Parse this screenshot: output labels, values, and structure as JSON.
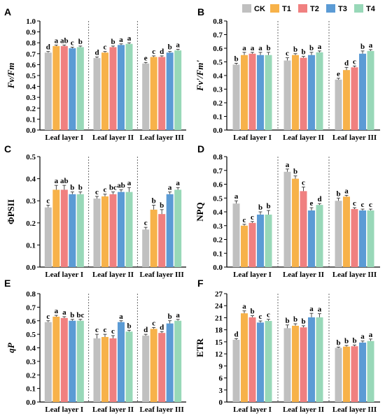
{
  "legend": {
    "items": [
      {
        "name": "CK",
        "color": "#c0c0c0"
      },
      {
        "name": "T1",
        "color": "#f7b24a"
      },
      {
        "name": "T2",
        "color": "#f08080"
      },
      {
        "name": "T3",
        "color": "#5b9bd5"
      },
      {
        "name": "T4",
        "color": "#98d8b8"
      }
    ]
  },
  "chart_data": [
    {
      "panel": "A",
      "type": "bar",
      "ylabel": "Fv/Fm",
      "ylabel_style": "italic",
      "ylim": [
        0,
        1.0
      ],
      "yticks": [
        "0.0",
        "0.1",
        "0.2",
        "0.3",
        "0.4",
        "0.5",
        "0.6",
        "0.7",
        "0.8",
        "0.9",
        "1.0"
      ],
      "categories": [
        "Leaf layer I",
        "Leaf layer II",
        "Leaf layer III"
      ],
      "series": [
        {
          "name": "CK",
          "values": [
            0.71,
            0.66,
            0.61
          ],
          "errors": [
            0.01,
            0.01,
            0.01
          ],
          "labels": [
            "d",
            "d",
            "e"
          ]
        },
        {
          "name": "T1",
          "values": [
            0.77,
            0.71,
            0.67
          ],
          "errors": [
            0.01,
            0.01,
            0.01
          ],
          "labels": [
            "a",
            "c",
            "c"
          ]
        },
        {
          "name": "T2",
          "values": [
            0.77,
            0.76,
            0.67
          ],
          "errors": [
            0.01,
            0.01,
            0.01
          ],
          "labels": [
            "ab",
            "b",
            "d"
          ]
        },
        {
          "name": "T3",
          "values": [
            0.75,
            0.78,
            0.71
          ],
          "errors": [
            0.01,
            0.01,
            0.01
          ],
          "labels": [
            "c",
            "a",
            "b"
          ]
        },
        {
          "name": "T4",
          "values": [
            0.76,
            0.79,
            0.73
          ],
          "errors": [
            0.01,
            0.01,
            0.01
          ],
          "labels": [
            "b",
            "a",
            "a"
          ]
        }
      ]
    },
    {
      "panel": "B",
      "type": "bar",
      "ylabel": "Fv'/Fm'",
      "ylabel_style": "italic",
      "ylim": [
        0,
        0.8
      ],
      "yticks": [
        "0.0",
        "0.1",
        "0.2",
        "0.3",
        "0.4",
        "0.5",
        "0.6",
        "0.7",
        "0.8"
      ],
      "categories": [
        "Leaf layer I",
        "Leaf layer II",
        "Leaf layer III"
      ],
      "series": [
        {
          "name": "CK",
          "values": [
            0.48,
            0.51,
            0.37
          ],
          "errors": [
            0.01,
            0.02,
            0.01
          ],
          "labels": [
            "b",
            "c",
            "e"
          ]
        },
        {
          "name": "T1",
          "values": [
            0.55,
            0.55,
            0.44
          ],
          "errors": [
            0.02,
            0.01,
            0.02
          ],
          "labels": [
            "a",
            "b",
            "d"
          ]
        },
        {
          "name": "T2",
          "values": [
            0.56,
            0.53,
            0.46
          ],
          "errors": [
            0.01,
            0.01,
            0.01
          ],
          "labels": [
            "a",
            "b",
            "c"
          ]
        },
        {
          "name": "T3",
          "values": [
            0.55,
            0.55,
            0.56
          ],
          "errors": [
            0.02,
            0.02,
            0.02
          ],
          "labels": [
            "a",
            "b",
            "b"
          ]
        },
        {
          "name": "T4",
          "values": [
            0.55,
            0.57,
            0.58
          ],
          "errors": [
            0.02,
            0.01,
            0.01
          ],
          "labels": [
            "b",
            "a",
            "a"
          ]
        }
      ]
    },
    {
      "panel": "C",
      "type": "bar",
      "ylabel": "ΦPSII",
      "ylabel_style": "normal",
      "ylim": [
        0,
        0.5
      ],
      "yticks": [
        "0.0",
        "0.1",
        "0.2",
        "0.3",
        "0.4",
        "0.5"
      ],
      "categories": [
        "Leaf layer I",
        "Leaf layer II",
        "Leaf layer III"
      ],
      "series": [
        {
          "name": "CK",
          "values": [
            0.27,
            0.31,
            0.17
          ],
          "errors": [
            0.01,
            0.01,
            0.01
          ],
          "labels": [
            "c",
            "c",
            "c"
          ]
        },
        {
          "name": "T1",
          "values": [
            0.35,
            0.32,
            0.26
          ],
          "errors": [
            0.02,
            0.01,
            0.02
          ],
          "labels": [
            "a",
            "c",
            "b"
          ]
        },
        {
          "name": "T2",
          "values": [
            0.35,
            0.33,
            0.24
          ],
          "errors": [
            0.02,
            0.01,
            0.02
          ],
          "labels": [
            "ab",
            "bc",
            "b"
          ]
        },
        {
          "name": "T3",
          "values": [
            0.33,
            0.34,
            0.33
          ],
          "errors": [
            0.01,
            0.01,
            0.01
          ],
          "labels": [
            "b",
            "ab",
            "a"
          ]
        },
        {
          "name": "T4",
          "values": [
            0.33,
            0.34,
            0.35
          ],
          "errors": [
            0.01,
            0.02,
            0.01
          ],
          "labels": [
            "b",
            "a",
            "a"
          ]
        }
      ]
    },
    {
      "panel": "D",
      "type": "bar",
      "ylabel": "NPQ",
      "ylabel_style": "normal",
      "ylim": [
        0,
        0.8
      ],
      "yticks": [
        "0.0",
        "0.1",
        "0.2",
        "0.3",
        "0.4",
        "0.5",
        "0.6",
        "0.7",
        "0.8"
      ],
      "categories": [
        "Leaf layer I",
        "Leaf layer II",
        "Leaf layer III"
      ],
      "series": [
        {
          "name": "CK",
          "values": [
            0.46,
            0.69,
            0.48
          ],
          "errors": [
            0.02,
            0.02,
            0.02
          ],
          "labels": [
            "a",
            "a",
            "b"
          ]
        },
        {
          "name": "T1",
          "values": [
            0.3,
            0.64,
            0.51
          ],
          "errors": [
            0.01,
            0.02,
            0.01
          ],
          "labels": [
            "c",
            "b",
            "a"
          ]
        },
        {
          "name": "T2",
          "values": [
            0.32,
            0.55,
            0.42
          ],
          "errors": [
            0.01,
            0.03,
            0.01
          ],
          "labels": [
            "c",
            "c",
            "c"
          ]
        },
        {
          "name": "T3",
          "values": [
            0.38,
            0.41,
            0.41
          ],
          "errors": [
            0.02,
            0.02,
            0.01
          ],
          "labels": [
            "b",
            "e",
            "c"
          ]
        },
        {
          "name": "T4",
          "values": [
            0.38,
            0.45,
            0.41
          ],
          "errors": [
            0.03,
            0.01,
            0.01
          ],
          "labels": [
            "b",
            "d",
            "c"
          ]
        }
      ]
    },
    {
      "panel": "E",
      "type": "bar",
      "ylabel": "qP",
      "ylabel_style": "italic",
      "ylim": [
        0,
        0.8
      ],
      "yticks": [
        "0.0",
        "0.1",
        "0.2",
        "0.3",
        "0.4",
        "0.5",
        "0.6",
        "0.7",
        "0.8"
      ],
      "categories": [
        "Leaf layer I",
        "Leaf layer II",
        "Leaf layer III"
      ],
      "series": [
        {
          "name": "CK",
          "values": [
            0.59,
            0.47,
            0.49
          ],
          "errors": [
            0.01,
            0.03,
            0.01
          ],
          "labels": [
            "c",
            "c",
            "d"
          ]
        },
        {
          "name": "T1",
          "values": [
            0.63,
            0.48,
            0.54
          ],
          "errors": [
            0.01,
            0.02,
            0.01
          ],
          "labels": [
            "a",
            "c",
            "c"
          ]
        },
        {
          "name": "T2",
          "values": [
            0.62,
            0.47,
            0.51
          ],
          "errors": [
            0.01,
            0.02,
            0.01
          ],
          "labels": [
            "a",
            "c",
            "d"
          ]
        },
        {
          "name": "T3",
          "values": [
            0.6,
            0.59,
            0.58
          ],
          "errors": [
            0.01,
            0.01,
            0.02
          ],
          "labels": [
            "b",
            "a",
            "b"
          ]
        },
        {
          "name": "T4",
          "values": [
            0.6,
            0.52,
            0.6
          ],
          "errors": [
            0.01,
            0.01,
            0.01
          ],
          "labels": [
            "bc",
            "b",
            "a"
          ]
        }
      ]
    },
    {
      "panel": "F",
      "type": "bar",
      "ylabel": "ETR",
      "ylabel_style": "normal",
      "ylim": [
        0,
        27
      ],
      "yticks": [
        "0",
        "3",
        "6",
        "9",
        "12",
        "15",
        "18",
        "21",
        "24",
        "27"
      ],
      "categories": [
        "Leaf layer I",
        "Leaf layer II",
        "Leaf layer III"
      ],
      "series": [
        {
          "name": "CK",
          "values": [
            15.5,
            18.4,
            13.5
          ],
          "errors": [
            0.3,
            0.8,
            0.2
          ],
          "labels": [
            "d",
            "b",
            "b"
          ]
        },
        {
          "name": "T1",
          "values": [
            22.1,
            19.0,
            13.8
          ],
          "errors": [
            0.6,
            0.5,
            0.3
          ],
          "labels": [
            "a",
            "b",
            "b"
          ]
        },
        {
          "name": "T2",
          "values": [
            21.1,
            18.6,
            13.9
          ],
          "errors": [
            0.4,
            0.4,
            0.3
          ],
          "labels": [
            "b",
            "b",
            "b"
          ]
        },
        {
          "name": "T3",
          "values": [
            19.8,
            21.1,
            14.8
          ],
          "errors": [
            0.4,
            1.0,
            0.4
          ],
          "labels": [
            "c",
            "a",
            "a"
          ]
        },
        {
          "name": "T4",
          "values": [
            20.2,
            21.1,
            15.2
          ],
          "errors": [
            0.4,
            0.9,
            0.5
          ],
          "labels": [
            "c",
            "a",
            "a"
          ]
        }
      ]
    }
  ]
}
